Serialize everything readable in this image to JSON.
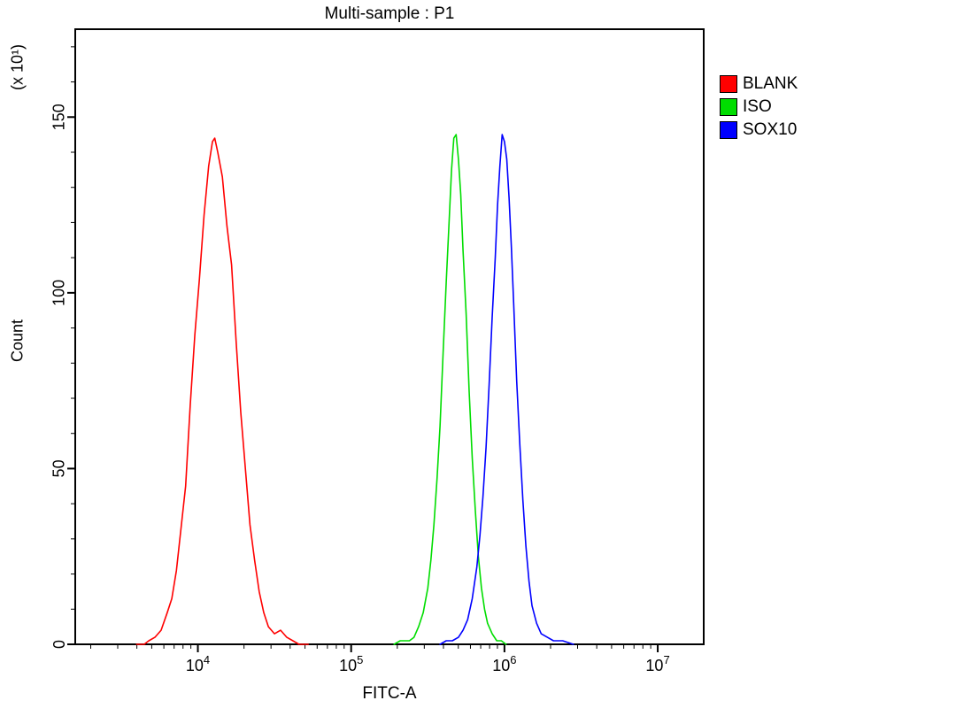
{
  "chart": {
    "title": "Multi-sample : P1",
    "x_axis": {
      "label": "FITC-A"
    },
    "y_axis": {
      "label": "Count",
      "scale_label": "(x 10¹)"
    }
  },
  "chart_data": {
    "type": "line",
    "subtype": "flow-cytometry-histogram-overlay",
    "title": "Multi-sample : P1",
    "xlabel": "FITC-A",
    "ylabel": "Count",
    "y_scale_note": "(x 10¹)",
    "x_scale": "log10",
    "xlim_log10": [
      3.2,
      7.3
    ],
    "ylim": [
      0,
      175
    ],
    "x_major_ticks_exponents": [
      4,
      5,
      6,
      7
    ],
    "y_major_ticks": [
      0,
      50,
      100,
      150
    ],
    "y_minor_tick_step": 10,
    "y_minor_tick_max": 170,
    "grid": false,
    "legend_position": "top-right-outside",
    "series": [
      {
        "name": "BLANK",
        "color": "#ff0000",
        "peak_x": 13000,
        "peak_count": 144,
        "points": [
          [
            3.6,
            0
          ],
          [
            3.65,
            0
          ],
          [
            3.68,
            1
          ],
          [
            3.72,
            2
          ],
          [
            3.76,
            4
          ],
          [
            3.8,
            9
          ],
          [
            3.83,
            13
          ],
          [
            3.86,
            21
          ],
          [
            3.89,
            33
          ],
          [
            3.92,
            45
          ],
          [
            3.95,
            68
          ],
          [
            3.98,
            88
          ],
          [
            4.01,
            104
          ],
          [
            4.04,
            122
          ],
          [
            4.07,
            136
          ],
          [
            4.095,
            143
          ],
          [
            4.11,
            144
          ],
          [
            4.13,
            140
          ],
          [
            4.16,
            133
          ],
          [
            4.19,
            119
          ],
          [
            4.22,
            108
          ],
          [
            4.25,
            86
          ],
          [
            4.28,
            66
          ],
          [
            4.31,
            50
          ],
          [
            4.34,
            34
          ],
          [
            4.37,
            24
          ],
          [
            4.4,
            15
          ],
          [
            4.43,
            9
          ],
          [
            4.46,
            5
          ],
          [
            4.5,
            3
          ],
          [
            4.54,
            4
          ],
          [
            4.58,
            2
          ],
          [
            4.62,
            1
          ],
          [
            4.66,
            0
          ],
          [
            4.72,
            0
          ]
        ]
      },
      {
        "name": "ISO",
        "color": "#00dd00",
        "peak_x": 470000,
        "peak_count": 145,
        "points": [
          [
            5.28,
            0
          ],
          [
            5.32,
            1
          ],
          [
            5.35,
            1
          ],
          [
            5.38,
            1
          ],
          [
            5.41,
            2
          ],
          [
            5.44,
            5
          ],
          [
            5.47,
            9
          ],
          [
            5.5,
            16
          ],
          [
            5.52,
            24
          ],
          [
            5.54,
            34
          ],
          [
            5.56,
            47
          ],
          [
            5.58,
            62
          ],
          [
            5.6,
            83
          ],
          [
            5.62,
            103
          ],
          [
            5.64,
            121
          ],
          [
            5.655,
            135
          ],
          [
            5.67,
            144
          ],
          [
            5.685,
            145
          ],
          [
            5.7,
            138
          ],
          [
            5.715,
            128
          ],
          [
            5.73,
            112
          ],
          [
            5.75,
            94
          ],
          [
            5.77,
            72
          ],
          [
            5.79,
            53
          ],
          [
            5.81,
            38
          ],
          [
            5.83,
            25
          ],
          [
            5.85,
            16
          ],
          [
            5.87,
            10
          ],
          [
            5.89,
            6
          ],
          [
            5.92,
            3
          ],
          [
            5.95,
            1
          ],
          [
            5.98,
            1
          ],
          [
            6.01,
            0
          ]
        ]
      },
      {
        "name": "SOX10",
        "color": "#0000ff",
        "peak_x": 970000,
        "peak_count": 145,
        "points": [
          [
            5.58,
            0
          ],
          [
            5.62,
            1
          ],
          [
            5.66,
            1
          ],
          [
            5.7,
            2
          ],
          [
            5.73,
            4
          ],
          [
            5.76,
            7
          ],
          [
            5.79,
            13
          ],
          [
            5.82,
            22
          ],
          [
            5.84,
            31
          ],
          [
            5.86,
            42
          ],
          [
            5.88,
            56
          ],
          [
            5.9,
            74
          ],
          [
            5.92,
            93
          ],
          [
            5.94,
            110
          ],
          [
            5.955,
            125
          ],
          [
            5.97,
            136
          ],
          [
            5.985,
            145
          ],
          [
            6.0,
            143
          ],
          [
            6.015,
            138
          ],
          [
            6.03,
            127
          ],
          [
            6.045,
            113
          ],
          [
            6.06,
            97
          ],
          [
            6.08,
            75
          ],
          [
            6.1,
            57
          ],
          [
            6.12,
            41
          ],
          [
            6.14,
            28
          ],
          [
            6.16,
            18
          ],
          [
            6.18,
            11
          ],
          [
            6.21,
            6
          ],
          [
            6.24,
            3
          ],
          [
            6.28,
            2
          ],
          [
            6.32,
            1
          ],
          [
            6.38,
            1
          ],
          [
            6.45,
            0
          ]
        ]
      }
    ]
  }
}
